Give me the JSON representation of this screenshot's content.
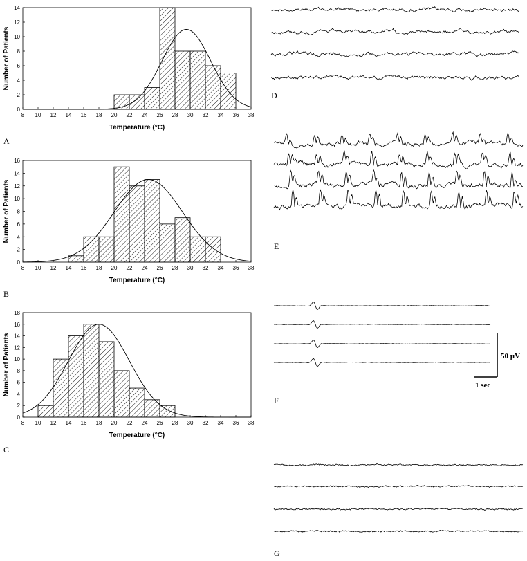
{
  "chart_data": [
    {
      "type": "bar",
      "panel": "A",
      "xlabel": "Temperature (°C)",
      "ylabel": "Number of Patients",
      "xlim": [
        8,
        38
      ],
      "ylim": [
        0,
        14
      ],
      "xticks": [
        8,
        10,
        12,
        14,
        16,
        18,
        20,
        22,
        24,
        26,
        28,
        30,
        32,
        34,
        36,
        38
      ],
      "yticks": [
        0,
        2,
        4,
        6,
        8,
        10,
        12,
        14
      ],
      "bars": [
        {
          "x": 21,
          "value": 2
        },
        {
          "x": 23,
          "value": 2
        },
        {
          "x": 25,
          "value": 3
        },
        {
          "x": 27,
          "value": 14
        },
        {
          "x": 29,
          "value": 8
        },
        {
          "x": 31,
          "value": 8
        },
        {
          "x": 33,
          "value": 6
        },
        {
          "x": 35,
          "value": 5
        }
      ],
      "bar_width": 2,
      "fit": {
        "type": "normal",
        "mean": 29.5,
        "sd": 3.2,
        "peak": 11
      }
    },
    {
      "type": "bar",
      "panel": "B",
      "xlabel": "Temperature (°C)",
      "ylabel": "Number of Patients",
      "xlim": [
        8,
        38
      ],
      "ylim": [
        0,
        16
      ],
      "xticks": [
        8,
        10,
        12,
        14,
        16,
        18,
        20,
        22,
        24,
        26,
        28,
        30,
        32,
        34,
        36,
        38
      ],
      "yticks": [
        0,
        2,
        4,
        6,
        8,
        10,
        12,
        14,
        16
      ],
      "bars": [
        {
          "x": 15,
          "value": 1
        },
        {
          "x": 17,
          "value": 4
        },
        {
          "x": 19,
          "value": 4
        },
        {
          "x": 21,
          "value": 15
        },
        {
          "x": 23,
          "value": 12
        },
        {
          "x": 25,
          "value": 13
        },
        {
          "x": 27,
          "value": 6
        },
        {
          "x": 29,
          "value": 7
        },
        {
          "x": 31,
          "value": 4
        },
        {
          "x": 33,
          "value": 4
        }
      ],
      "bar_width": 2,
      "fit": {
        "type": "normal",
        "mean": 24.5,
        "sd": 4.5,
        "peak": 13
      }
    },
    {
      "type": "bar",
      "panel": "C",
      "xlabel": "Temperature (°C)",
      "ylabel": "Number of Patients",
      "xlim": [
        8,
        38
      ],
      "ylim": [
        0,
        18
      ],
      "xticks": [
        8,
        10,
        12,
        14,
        16,
        18,
        20,
        22,
        24,
        26,
        28,
        30,
        32,
        34,
        36,
        38
      ],
      "yticks": [
        0,
        2,
        4,
        6,
        8,
        10,
        12,
        14,
        16,
        18
      ],
      "bars": [
        {
          "x": 11,
          "value": 2
        },
        {
          "x": 13,
          "value": 10
        },
        {
          "x": 15,
          "value": 14
        },
        {
          "x": 17,
          "value": 16
        },
        {
          "x": 19,
          "value": 13
        },
        {
          "x": 21,
          "value": 8
        },
        {
          "x": 23,
          "value": 5
        },
        {
          "x": 25,
          "value": 3
        },
        {
          "x": 27,
          "value": 2
        }
      ],
      "bar_width": 2,
      "fit": {
        "type": "normal",
        "mean": 18,
        "sd": 4,
        "peak": 16
      }
    }
  ],
  "panel_letters": {
    "A": "A",
    "B": "B",
    "C": "C",
    "D": "D",
    "E": "E",
    "F": "F",
    "G": "G"
  },
  "eeg_panels": [
    {
      "panel": "D",
      "channels": 4
    },
    {
      "panel": "E",
      "channels": 4
    },
    {
      "panel": "F",
      "channels": 4
    },
    {
      "panel": "G",
      "channels": 4
    }
  ],
  "scale_bar": {
    "amplitude": "50 µV",
    "time": "1 sec"
  }
}
